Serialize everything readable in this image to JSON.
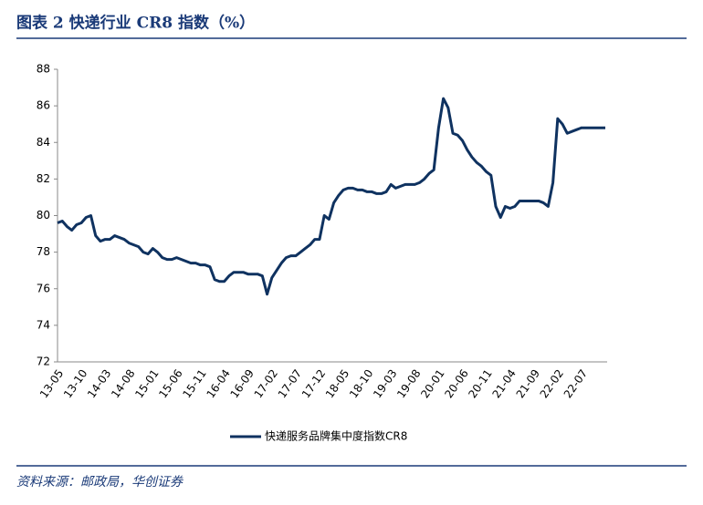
{
  "chart_data": {
    "type": "line",
    "title": "图表 2 快递行业 CR8 指数（%）",
    "source": "资料来源：邮政局，华创证券",
    "categories": [
      "13-05",
      null,
      null,
      null,
      null,
      "13-10",
      null,
      null,
      null,
      null,
      "14-03",
      null,
      null,
      null,
      null,
      "14-08",
      null,
      null,
      null,
      null,
      "15-01",
      null,
      null,
      null,
      null,
      "15-06",
      null,
      null,
      null,
      null,
      "15-11",
      null,
      null,
      null,
      null,
      "16-04",
      null,
      null,
      null,
      null,
      "16-09",
      null,
      null,
      null,
      null,
      "17-02",
      null,
      null,
      null,
      null,
      "17-07",
      null,
      null,
      null,
      null,
      "17-12",
      null,
      null,
      null,
      null,
      "18-05",
      null,
      null,
      null,
      null,
      "18-10",
      null,
      null,
      null,
      null,
      "19-03",
      null,
      null,
      null,
      null,
      "19-08",
      null,
      null,
      null,
      null,
      "20-01",
      null,
      null,
      null,
      null,
      "20-06",
      null,
      null,
      null,
      null,
      "20-11",
      null,
      null,
      null,
      null,
      "21-04",
      null,
      null,
      null,
      null,
      "21-09",
      null,
      null,
      null,
      null,
      "22-02",
      null,
      null,
      null,
      null,
      "22-07",
      null,
      null,
      null,
      null,
      null
    ],
    "series": [
      {
        "name": "快递服务品牌集中度指数CR8",
        "color": "#0f3260",
        "values": [
          79.6,
          79.7,
          79.4,
          79.2,
          79.5,
          79.6,
          79.9,
          80.0,
          78.9,
          78.6,
          78.7,
          78.7,
          78.9,
          78.8,
          78.7,
          78.5,
          78.4,
          78.3,
          78.0,
          77.9,
          78.2,
          78.0,
          77.7,
          77.6,
          77.6,
          77.7,
          77.6,
          77.5,
          77.4,
          77.4,
          77.3,
          77.3,
          77.2,
          76.5,
          76.4,
          76.4,
          76.7,
          76.9,
          76.9,
          76.9,
          76.8,
          76.8,
          76.8,
          76.7,
          75.7,
          76.6,
          77.0,
          77.4,
          77.7,
          77.8,
          77.8,
          78.0,
          78.2,
          78.4,
          78.7,
          78.7,
          80.0,
          79.8,
          80.7,
          81.1,
          81.4,
          81.5,
          81.5,
          81.4,
          81.4,
          81.3,
          81.3,
          81.2,
          81.2,
          81.3,
          81.7,
          81.5,
          81.6,
          81.7,
          81.7,
          81.7,
          81.8,
          82.0,
          82.3,
          82.5,
          84.8,
          86.4,
          85.9,
          84.5,
          84.4,
          84.1,
          83.6,
          83.2,
          82.9,
          82.7,
          82.4,
          82.2,
          80.5,
          79.9,
          80.5,
          80.4,
          80.5,
          80.8,
          80.8,
          80.8,
          80.8,
          80.8,
          80.7,
          80.5,
          81.8,
          85.3,
          85.0,
          84.5,
          84.6,
          84.7,
          84.8,
          84.8,
          84.8,
          84.8,
          84.8,
          84.8
        ]
      }
    ],
    "ylim": [
      72,
      88
    ],
    "yticks": [
      72,
      74,
      76,
      78,
      80,
      82,
      84,
      86,
      88
    ],
    "grid": false,
    "legend": "bottom"
  }
}
